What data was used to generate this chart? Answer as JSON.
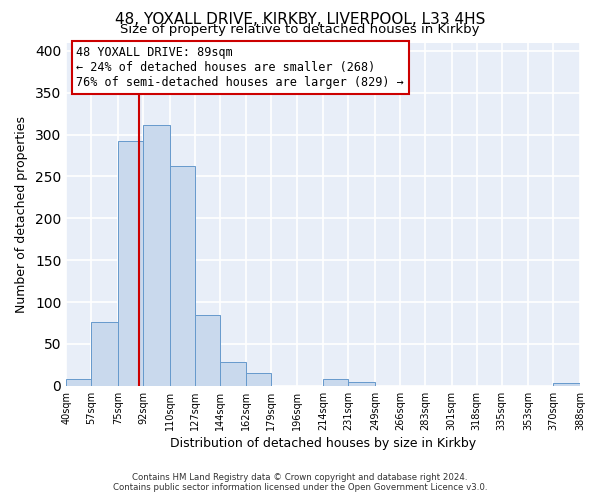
{
  "title": "48, YOXALL DRIVE, KIRKBY, LIVERPOOL, L33 4HS",
  "subtitle": "Size of property relative to detached houses in Kirkby",
  "xlabel": "Distribution of detached houses by size in Kirkby",
  "ylabel": "Number of detached properties",
  "bin_edges": [
    40,
    57,
    75,
    92,
    110,
    127,
    144,
    162,
    179,
    196,
    214,
    231,
    249,
    266,
    283,
    301,
    318,
    335,
    353,
    370,
    388
  ],
  "bin_counts": [
    8,
    76,
    292,
    312,
    263,
    85,
    29,
    15,
    0,
    0,
    8,
    5,
    0,
    0,
    0,
    0,
    0,
    0,
    0,
    3
  ],
  "bar_facecolor": "#c9d9ed",
  "bar_edgecolor": "#6699cc",
  "vline_color": "#cc0000",
  "vline_x": 89,
  "annotation_title": "48 YOXALL DRIVE: 89sqm",
  "annotation_line1": "← 24% of detached houses are smaller (268)",
  "annotation_line2": "76% of semi-detached houses are larger (829) →",
  "annotation_box_edgecolor": "#cc0000",
  "annotation_box_facecolor": "#ffffff",
  "ylim": [
    0,
    410
  ],
  "yticks": [
    0,
    50,
    100,
    150,
    200,
    250,
    300,
    350,
    400
  ],
  "tick_labels": [
    "40sqm",
    "57sqm",
    "75sqm",
    "92sqm",
    "110sqm",
    "127sqm",
    "144sqm",
    "162sqm",
    "179sqm",
    "196sqm",
    "214sqm",
    "231sqm",
    "249sqm",
    "266sqm",
    "283sqm",
    "301sqm",
    "318sqm",
    "335sqm",
    "353sqm",
    "370sqm",
    "388sqm"
  ],
  "footer1": "Contains HM Land Registry data © Crown copyright and database right 2024.",
  "footer2": "Contains public sector information licensed under the Open Government Licence v3.0.",
  "background_color": "#ffffff",
  "plot_bg_color": "#e8eef8",
  "grid_color": "#ffffff",
  "title_fontsize": 11,
  "subtitle_fontsize": 9.5,
  "tick_fontsize": 7,
  "label_fontsize": 9,
  "annotation_fontsize": 8.5
}
